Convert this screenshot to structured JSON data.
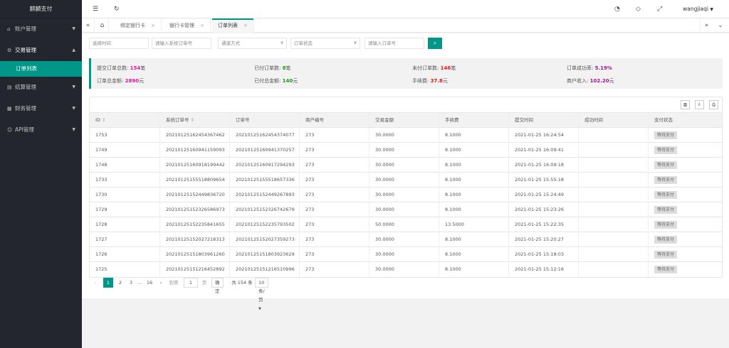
{
  "sidebar": {
    "logo": "麒麟支付",
    "items": [
      {
        "label": "账户管理",
        "icon": "home-icon",
        "glyph": "⌂",
        "caret": "▼"
      },
      {
        "label": "交易管理",
        "icon": "settings-icon",
        "glyph": "⚙",
        "caret": "▲"
      },
      {
        "label": "订单列表"
      },
      {
        "label": "结算管理",
        "icon": "document-icon",
        "glyph": "▤",
        "caret": "▼"
      },
      {
        "label": "财务管理",
        "icon": "table-icon",
        "glyph": "▦",
        "caret": "▼"
      },
      {
        "label": "API管理",
        "icon": "user-icon",
        "glyph": "☺",
        "caret": "▼"
      }
    ]
  },
  "header": {
    "user": "wangjiaqi",
    "user_caret": "▼",
    "icons": {
      "menu": "☰",
      "refresh": "↻",
      "dashboard": "◔",
      "tag": "◇",
      "fullscreen": "⤢"
    }
  },
  "tabs": {
    "left_arrow": "«",
    "home": "⌂",
    "items": [
      {
        "label": "绑定银行卡",
        "close": "×"
      },
      {
        "label": "银行卡管理",
        "close": "×"
      },
      {
        "label": "订单列表",
        "close": "×"
      }
    ],
    "right_arrow": "»",
    "more": "⌄"
  },
  "filter": {
    "time_placeholder": "选择时间",
    "sys_order_placeholder": "请输入系统订单号",
    "channel_placeholder": "通道方式",
    "status_placeholder": "订单状态",
    "order_placeholder": "请输入订单号",
    "select_caret": "▼",
    "search_icon": "⌕"
  },
  "stats": {
    "submit_total_label": "提交订单总数:",
    "submit_total_value": "154",
    "submit_total_unit": "笔",
    "paid_count_label": "已付订单数:",
    "paid_count_value": "8",
    "paid_count_unit": "笔",
    "unpaid_count_label": "未付订单数:",
    "unpaid_count_value": "146",
    "unpaid_count_unit": "笔",
    "success_rate_label": "订单成功率:",
    "success_rate_value": "5.19%",
    "total_amount_label": "订单总金额:",
    "total_amount_value": "2890",
    "total_amount_unit": "元",
    "paid_amount_label": "已付总金额:",
    "paid_amount_value": "140",
    "paid_amount_unit": "元",
    "fee_label": "手续费:",
    "fee_value": "37.8",
    "fee_unit": "元",
    "income_label": "商户收入:",
    "income_value": "102.20",
    "income_unit": "元"
  },
  "toolbar": {
    "columns_icon": "▥",
    "export_icon": "⇩",
    "print_icon": "⎙"
  },
  "table": {
    "headers": [
      "ID",
      "系统订单号",
      "订单号",
      "商户编号",
      "交易金额",
      "手续费",
      "提交时间",
      "成功时间",
      "支付状态"
    ],
    "sort_icon": "⇕",
    "rows": [
      [
        "1753",
        "20210125162454367462",
        "20210125162454374077",
        "273",
        "30.0000",
        "8.1000",
        "2021-01-25 16:24:54",
        "",
        "等待支付"
      ],
      [
        "1749",
        "20210125160941159093",
        "20210125160941370257",
        "273",
        "30.0000",
        "8.1000",
        "2021-01-25 16:09:41",
        "",
        "等待支付"
      ],
      [
        "1748",
        "20210125160918199442",
        "20210125160917294293",
        "273",
        "30.0000",
        "8.1000",
        "2021-01-25 16:09:18",
        "",
        "等待支付"
      ],
      [
        "1733",
        "20210125155518809654",
        "20210125155518657336",
        "273",
        "30.0000",
        "8.1000",
        "2021-01-25 15:55:18",
        "",
        "等待支付"
      ],
      [
        "1730",
        "20210125152449836720",
        "20210125152449267893",
        "273",
        "30.0000",
        "8.1000",
        "2021-01-25 15:24:49",
        "",
        "等待支付"
      ],
      [
        "1729",
        "20210125152326586973",
        "20210125152326742679",
        "273",
        "30.0000",
        "8.1000",
        "2021-01-25 15:23:26",
        "",
        "等待支付"
      ],
      [
        "1728",
        "20210125152235841655",
        "20210125152235793502",
        "273",
        "50.0000",
        "13.5000",
        "2021-01-25 15:22:35",
        "",
        "等待支付"
      ],
      [
        "1727",
        "20210125152027218313",
        "20210125152027359273",
        "273",
        "30.0000",
        "8.1000",
        "2021-01-25 15:20:27",
        "",
        "等待支付"
      ],
      [
        "1726",
        "20210125151803961260",
        "20210125151803923629",
        "273",
        "30.0000",
        "8.1000",
        "2021-01-25 15:18:03",
        "",
        "等待支付"
      ],
      [
        "1725",
        "20210125151216452892",
        "20210125151216510996",
        "273",
        "30.0000",
        "8.1000",
        "2021-01-25 15:12:16",
        "",
        "等待支付"
      ]
    ]
  },
  "pager": {
    "prev": "‹",
    "next": "›",
    "pages": [
      "1",
      "2",
      "3"
    ],
    "ellipsis": "…",
    "last": "16",
    "goto_label": "到第",
    "goto_value": "1",
    "page_unit": "页",
    "confirm": "确定",
    "total": "共 154 条",
    "per_page": "10 条/页",
    "per_page_caret": "▼"
  },
  "colors": {
    "accent": "#009688",
    "sidebar_bg": "#23262e"
  }
}
